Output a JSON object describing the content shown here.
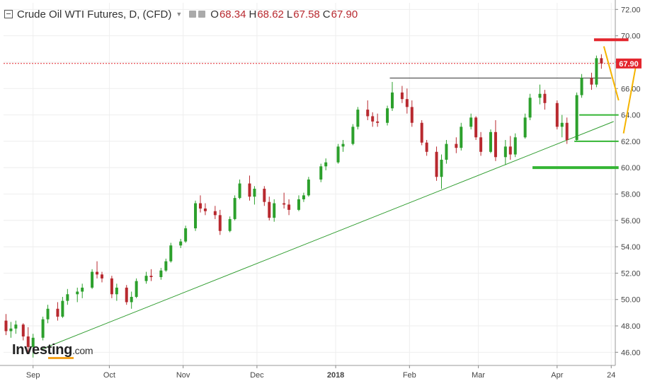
{
  "header": {
    "title": "Crude Oil WTI Futures, D, (CFD)",
    "open_label": "O",
    "open": "68.34",
    "high_label": "H",
    "high": "68.62",
    "low_label": "L",
    "low": "67.58",
    "close_label": "C",
    "close": "67.90"
  },
  "logo": {
    "name": "Investing",
    "suffix": ".com"
  },
  "colors": {
    "up": "#2ca02c",
    "down": "#b8292f",
    "trendline": "#2e9c2e",
    "resistance": "#e3262e",
    "support": "#34b534",
    "arrow": "#f5b400",
    "price_tag": "#e3262e"
  },
  "chart_data": {
    "type": "candlestick",
    "title": "Crude Oil WTI Futures, D, (CFD)",
    "ylim": [
      45.0,
      72.5
    ],
    "yticks": [
      "46.00",
      "48.00",
      "50.00",
      "52.00",
      "54.00",
      "56.00",
      "58.00",
      "60.00",
      "62.00",
      "64.00",
      "66.00",
      "68.00",
      "70.00",
      "72.00"
    ],
    "xticks": [
      {
        "label": "Sep",
        "date": "2017-09-01"
      },
      {
        "label": "Oct",
        "date": "2017-10-02"
      },
      {
        "label": "Nov",
        "date": "2017-11-01"
      },
      {
        "label": "Dec",
        "date": "2017-12-01"
      },
      {
        "label": "2018",
        "date": "2018-01-02"
      },
      {
        "label": "Feb",
        "date": "2018-02-01"
      },
      {
        "label": "Mar",
        "date": "2018-03-01"
      },
      {
        "label": "Apr",
        "date": "2018-04-02"
      },
      {
        "label": "24",
        "date": "2018-04-24"
      }
    ],
    "last_price": "67.90",
    "last_price_value": 67.9,
    "grid": true,
    "candles": [
      [
        "2017-08-21",
        48.4,
        48.9,
        47.3,
        47.6
      ],
      [
        "2017-08-23",
        47.6,
        48.3,
        47.1,
        47.8
      ],
      [
        "2017-08-25",
        47.8,
        48.4,
        47.4,
        48.1
      ],
      [
        "2017-08-28",
        48.1,
        48.2,
        46.9,
        47.2
      ],
      [
        "2017-08-30",
        47.2,
        47.9,
        45.9,
        46.4
      ],
      [
        "2017-09-01",
        46.4,
        47.4,
        45.6,
        47.1
      ],
      [
        "2017-09-05",
        47.1,
        48.7,
        46.9,
        48.5
      ],
      [
        "2017-09-07",
        48.5,
        49.6,
        48.2,
        49.3
      ],
      [
        "2017-09-11",
        49.3,
        49.8,
        48.4,
        48.7
      ],
      [
        "2017-09-13",
        48.7,
        50.2,
        48.6,
        49.9
      ],
      [
        "2017-09-15",
        49.9,
        50.8,
        49.6,
        50.4
      ],
      [
        "2017-09-19",
        50.4,
        50.9,
        49.8,
        50.6
      ],
      [
        "2017-09-21",
        50.6,
        51.2,
        50.1,
        50.9
      ],
      [
        "2017-09-25",
        50.9,
        52.3,
        50.8,
        52.1
      ],
      [
        "2017-09-27",
        52.1,
        52.9,
        51.6,
        51.9
      ],
      [
        "2017-09-29",
        51.9,
        52.1,
        51.3,
        51.6
      ],
      [
        "2017-10-03",
        51.6,
        51.8,
        50.1,
        50.4
      ],
      [
        "2017-10-05",
        50.4,
        51.2,
        49.9,
        50.9
      ],
      [
        "2017-10-09",
        50.9,
        51.1,
        49.6,
        49.8
      ],
      [
        "2017-10-11",
        49.8,
        50.6,
        49.3,
        50.2
      ],
      [
        "2017-10-13",
        50.2,
        51.6,
        50.1,
        51.4
      ],
      [
        "2017-10-17",
        51.4,
        52.1,
        51.2,
        51.8
      ],
      [
        "2017-10-19",
        51.8,
        52.3,
        51.4,
        51.7
      ],
      [
        "2017-10-23",
        51.7,
        52.4,
        51.5,
        52.2
      ],
      [
        "2017-10-25",
        52.2,
        53.1,
        52.1,
        52.9
      ],
      [
        "2017-10-27",
        52.9,
        54.3,
        52.8,
        54.1
      ],
      [
        "2017-10-31",
        54.1,
        54.6,
        53.9,
        54.4
      ],
      [
        "2017-11-02",
        54.4,
        55.6,
        54.3,
        55.4
      ],
      [
        "2017-11-06",
        55.4,
        57.5,
        55.2,
        57.3
      ],
      [
        "2017-11-08",
        57.3,
        57.9,
        56.6,
        56.9
      ],
      [
        "2017-11-10",
        56.9,
        57.3,
        56.4,
        56.7
      ],
      [
        "2017-11-14",
        56.7,
        57.1,
        56.1,
        56.4
      ],
      [
        "2017-11-16",
        56.4,
        56.8,
        54.9,
        55.2
      ],
      [
        "2017-11-20",
        55.2,
        56.3,
        55.1,
        56.1
      ],
      [
        "2017-11-22",
        56.1,
        57.9,
        56.0,
        57.7
      ],
      [
        "2017-11-24",
        57.7,
        59.1,
        57.6,
        58.8
      ],
      [
        "2017-11-28",
        58.8,
        59.4,
        57.5,
        57.8
      ],
      [
        "2017-11-30",
        57.8,
        58.6,
        57.2,
        58.4
      ],
      [
        "2017-12-04",
        58.4,
        58.6,
        57.1,
        57.4
      ],
      [
        "2017-12-06",
        57.4,
        57.8,
        56.0,
        56.2
      ],
      [
        "2017-12-08",
        56.2,
        57.6,
        55.9,
        57.3
      ],
      [
        "2017-12-12",
        57.3,
        58.1,
        56.9,
        57.2
      ],
      [
        "2017-12-14",
        57.2,
        57.6,
        56.4,
        56.8
      ],
      [
        "2017-12-18",
        56.8,
        57.9,
        56.7,
        57.6
      ],
      [
        "2017-12-20",
        57.6,
        58.1,
        57.4,
        57.9
      ],
      [
        "2017-12-22",
        57.9,
        59.3,
        57.8,
        59.1
      ],
      [
        "2017-12-27",
        59.1,
        60.3,
        58.9,
        60.1
      ],
      [
        "2017-12-29",
        60.1,
        60.7,
        59.8,
        60.4
      ],
      [
        "2018-01-03",
        60.4,
        61.8,
        60.3,
        61.6
      ],
      [
        "2018-01-05",
        61.6,
        62.1,
        61.2,
        61.8
      ],
      [
        "2018-01-09",
        61.8,
        63.3,
        61.7,
        63.1
      ],
      [
        "2018-01-11",
        63.1,
        64.6,
        62.9,
        64.4
      ],
      [
        "2018-01-15",
        64.4,
        65.1,
        63.6,
        63.9
      ],
      [
        "2018-01-17",
        63.9,
        64.2,
        63.1,
        63.5
      ],
      [
        "2018-01-19",
        63.5,
        64.1,
        63.1,
        63.4
      ],
      [
        "2018-01-23",
        63.4,
        64.7,
        63.2,
        64.5
      ],
      [
        "2018-01-25",
        64.5,
        66.5,
        64.3,
        65.7
      ],
      [
        "2018-01-29",
        65.7,
        66.2,
        64.9,
        65.2
      ],
      [
        "2018-01-31",
        65.2,
        66.0,
        64.1,
        64.6
      ],
      [
        "2018-02-02",
        64.6,
        65.1,
        63.1,
        63.4
      ],
      [
        "2018-02-06",
        63.4,
        63.6,
        61.7,
        61.9
      ],
      [
        "2018-02-08",
        61.9,
        62.1,
        60.9,
        61.2
      ],
      [
        "2018-02-12",
        61.2,
        61.6,
        59.0,
        59.3
      ],
      [
        "2018-02-14",
        59.3,
        61.0,
        58.4,
        60.6
      ],
      [
        "2018-02-16",
        60.6,
        62.1,
        60.3,
        61.8
      ],
      [
        "2018-02-20",
        61.8,
        62.3,
        61.1,
        61.5
      ],
      [
        "2018-02-22",
        61.5,
        63.4,
        61.3,
        63.1
      ],
      [
        "2018-02-26",
        63.1,
        64.1,
        62.9,
        63.8
      ],
      [
        "2018-02-28",
        63.8,
        63.9,
        62.1,
        62.3
      ],
      [
        "2018-03-02",
        62.3,
        62.7,
        60.9,
        61.2
      ],
      [
        "2018-03-06",
        61.2,
        62.9,
        61.1,
        62.7
      ],
      [
        "2018-03-08",
        62.7,
        63.6,
        60.5,
        60.8
      ],
      [
        "2018-03-12",
        60.8,
        62.1,
        60.2,
        61.6
      ],
      [
        "2018-03-14",
        61.6,
        62.4,
        60.6,
        61.0
      ],
      [
        "2018-03-16",
        61.0,
        62.6,
        60.8,
        62.3
      ],
      [
        "2018-03-20",
        62.3,
        64.1,
        62.2,
        63.8
      ],
      [
        "2018-03-22",
        63.8,
        65.6,
        63.6,
        65.3
      ],
      [
        "2018-03-26",
        65.3,
        66.3,
        64.8,
        65.6
      ],
      [
        "2018-03-28",
        65.6,
        65.9,
        64.4,
        64.9
      ],
      [
        "2018-04-02",
        64.9,
        65.1,
        62.9,
        63.1
      ],
      [
        "2018-04-04",
        63.1,
        64.0,
        62.3,
        63.4
      ],
      [
        "2018-04-06",
        63.4,
        63.8,
        61.8,
        62.1
      ],
      [
        "2018-04-10",
        62.1,
        65.7,
        62.0,
        65.5
      ],
      [
        "2018-04-12",
        65.5,
        67.1,
        65.3,
        66.8
      ],
      [
        "2018-04-16",
        66.8,
        67.2,
        65.9,
        66.3
      ],
      [
        "2018-04-18",
        66.3,
        68.5,
        66.1,
        68.3
      ],
      [
        "2018-04-20",
        68.3,
        68.6,
        67.5,
        67.9
      ]
    ],
    "trendline": [
      [
        "2017-09-04",
        46.2
      ],
      [
        "2018-04-25",
        63.5
      ]
    ],
    "resistance_line": {
      "from": "2018-01-24",
      "to": "2018-04-24",
      "y": 66.8
    },
    "price_line": {
      "y": 67.9
    },
    "annotations": {
      "red_level": {
        "from": "2018-04-17",
        "to": "2018-05-01",
        "y": 69.7
      },
      "green_levels": [
        {
          "from": "2018-04-11",
          "to": "2018-04-27",
          "y": 64.0
        },
        {
          "from": "2018-04-09",
          "to": "2018-04-27",
          "y": 62.0
        },
        {
          "from": "2018-03-23",
          "to": "2018-04-27",
          "y": 60.0
        }
      ],
      "arrows": [
        {
          "from": [
            "2018-04-21",
            69.2
          ],
          "to": [
            "2018-04-27",
            65.1
          ]
        },
        {
          "from": [
            "2018-04-29",
            62.6
          ],
          "to": [
            "2018-05-04",
            67.7
          ]
        }
      ]
    }
  }
}
